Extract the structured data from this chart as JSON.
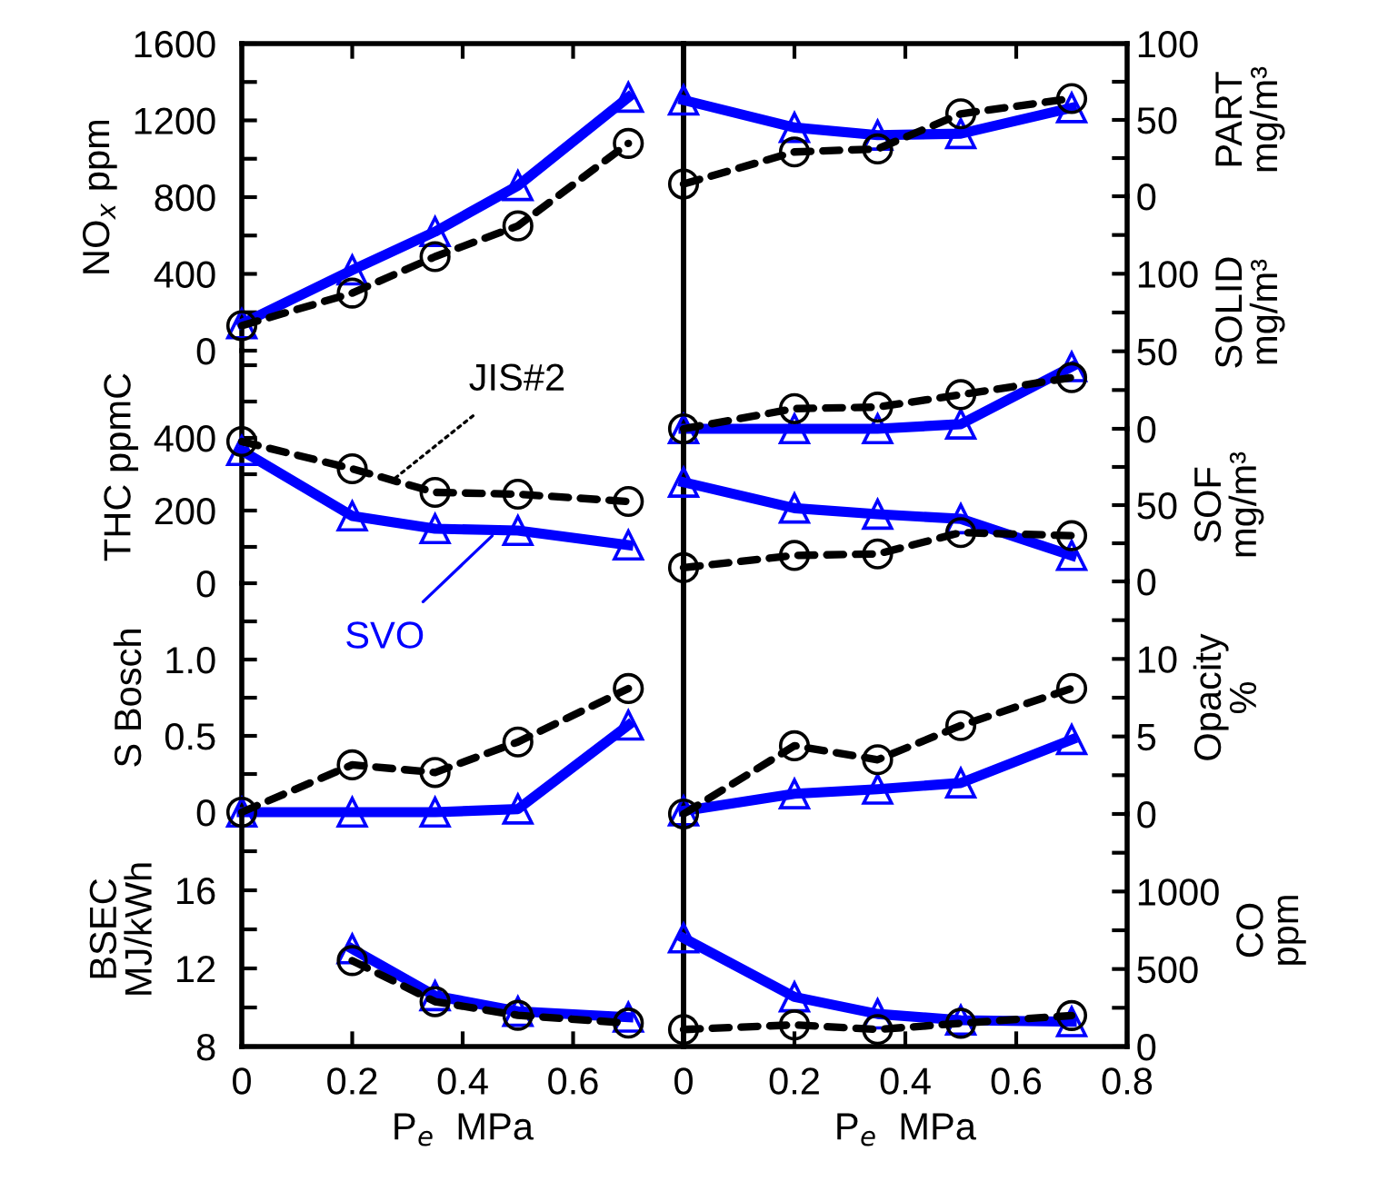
{
  "chart_data": [
    {
      "type": "line",
      "ylabel": "NO$_{x}$ ppm",
      "x": [
        0,
        0.2,
        0.35,
        0.5,
        0.7
      ],
      "xlim": [
        0,
        0.8
      ],
      "xticks": [
        {
          "value": 0,
          "label": null
        },
        {
          "value": 0.2,
          "label": null
        },
        {
          "value": 0.4,
          "label": null
        },
        {
          "value": 0.6,
          "label": null
        }
      ],
      "ylim": [
        0,
        1600
      ],
      "yticks": [
        0,
        {
          "value": 200,
          "label": null
        },
        400,
        {
          "value": 600,
          "label": null
        },
        800,
        {
          "value": 1000,
          "label": null
        },
        1200,
        {
          "value": 1400,
          "label": null
        },
        1600
      ],
      "tick_labels": "y",
      "series": [
        {
          "color": "#000000",
          "marker": "circle",
          "line_style": "dashed",
          "values": [
            130,
            300,
            490,
            650,
            1080
          ]
        },
        {
          "color": "#0000ff",
          "marker": "triangle",
          "line_style": "solid",
          "values": [
            140,
            420,
            620,
            860,
            1320
          ]
        }
      ]
    },
    {
      "type": "line",
      "ylabel": "THC ppmC",
      "x": [
        0,
        0.2,
        0.35,
        0.5,
        0.7
      ],
      "xlim": [
        0,
        0.8
      ],
      "ylim": [
        0,
        640
      ],
      "yticks": [
        0,
        {
          "value": 100,
          "label": null
        },
        200,
        {
          "value": 300,
          "label": null
        },
        400,
        {
          "value": 500,
          "label": null
        },
        {
          "value": 600,
          "label": null
        }
      ],
      "tick_labels": "y",
      "annotations": [
        {
          "text": "JIS#2",
          "x": 0.27,
          "y": 280
        },
        {
          "text": "SVO",
          "x": 0.46,
          "y": 140
        }
      ],
      "series": [
        {
          "color": "#000000",
          "marker": "circle",
          "line_style": "dashed",
          "values": [
            390,
            315,
            250,
            245,
            225
          ]
        },
        {
          "color": "#0000ff",
          "marker": "triangle",
          "line_style": "solid",
          "values": [
            365,
            185,
            150,
            145,
            105
          ]
        }
      ]
    },
    {
      "type": "line",
      "ylabel": "S Bosch",
      "x": [
        0,
        0.2,
        0.35,
        0.5,
        0.7
      ],
      "xlim": [
        0,
        0.8
      ],
      "ylim": [
        0,
        1.5
      ],
      "yticks": [
        {
          "value": 0,
          "label": "0"
        },
        {
          "value": 0.25,
          "label": null
        },
        {
          "value": 0.5,
          "label": "0.5"
        },
        {
          "value": 0.75,
          "label": null
        },
        {
          "value": 1.0,
          "label": "1.0"
        },
        {
          "value": 1.25,
          "label": null
        }
      ],
      "tick_labels": "y",
      "series": [
        {
          "color": "#000000",
          "marker": "circle",
          "line_style": "dashed",
          "values": [
            0,
            0.31,
            0.26,
            0.46,
            0.81
          ]
        },
        {
          "color": "#0000ff",
          "marker": "triangle",
          "line_style": "solid",
          "values": [
            0,
            0,
            0,
            0.02,
            0.57
          ]
        }
      ]
    },
    {
      "type": "line",
      "ylabel": "BSEC\nMJ/kWh",
      "xlabel": "P$_{e}$  MPa",
      "x": [
        0.2,
        0.35,
        0.5,
        0.7
      ],
      "xlim": [
        0,
        0.8
      ],
      "xticks": [
        0,
        0.2,
        0.4,
        0.6,
        {
          "value": 0.8,
          "label": null
        }
      ],
      "ylim": [
        8,
        20
      ],
      "yticks": [
        8,
        {
          "value": 10,
          "label": null
        },
        12,
        {
          "value": 14,
          "label": null
        },
        16,
        {
          "value": 18,
          "label": null
        }
      ],
      "series": [
        {
          "color": "#000000",
          "marker": "circle",
          "line_style": "dashed",
          "values": [
            12.4,
            10.3,
            9.6,
            9.2
          ]
        },
        {
          "color": "#0000ff",
          "marker": "triangle",
          "line_style": "solid",
          "values": [
            13,
            10.6,
            9.8,
            9.5
          ]
        }
      ]
    },
    {
      "type": "line",
      "ylabel": "PART\nmg/m³",
      "x": [
        0,
        0.2,
        0.35,
        0.5,
        0.7
      ],
      "xlim": [
        0,
        0.8
      ],
      "xticks": [
        {
          "value": 0.2,
          "label": null
        },
        {
          "value": 0.4,
          "label": null
        },
        {
          "value": 0.6,
          "label": null
        }
      ],
      "ylim": [
        0,
        100
      ],
      "yticks": [
        0,
        {
          "value": 25,
          "label": null
        },
        50,
        {
          "value": 75,
          "label": null
        },
        100
      ],
      "tick_labels": "y",
      "series": [
        {
          "color": "#000000",
          "marker": "circle",
          "line_style": "dashed",
          "values": [
            8,
            29,
            31,
            54,
            64
          ]
        },
        {
          "color": "#0000ff",
          "marker": "triangle",
          "line_style": "solid",
          "values": [
            63,
            45,
            40,
            41,
            58
          ]
        }
      ]
    },
    {
      "type": "line",
      "ylabel": "SOLID\nmg/m³",
      "x": [
        0,
        0.2,
        0.35,
        0.5,
        0.7
      ],
      "xlim": [
        0,
        0.8
      ],
      "ylim": [
        0,
        150
      ],
      "yticks": [
        0,
        {
          "value": 25,
          "label": null
        },
        50,
        {
          "value": 75,
          "label": null
        },
        100,
        {
          "value": 125,
          "label": null
        }
      ],
      "tick_labels": "y",
      "series": [
        {
          "color": "#000000",
          "marker": "circle",
          "line_style": "dashed",
          "values": [
            0,
            13,
            14,
            22,
            33
          ]
        },
        {
          "color": "#0000ff",
          "marker": "triangle",
          "line_style": "solid",
          "values": [
            0,
            0,
            0,
            3,
            40
          ]
        }
      ]
    },
    {
      "type": "line",
      "ylabel": "SOF\nmg/m³",
      "x": [
        0,
        0.2,
        0.35,
        0.5,
        0.7
      ],
      "xlim": [
        0,
        0.8
      ],
      "ylim": [
        0,
        100
      ],
      "yticks": [
        0,
        {
          "value": 25,
          "label": null
        },
        50,
        {
          "value": 75,
          "label": null
        }
      ],
      "tick_labels": "y",
      "series": [
        {
          "color": "#000000",
          "marker": "circle",
          "line_style": "dashed",
          "values": [
            9,
            17,
            18,
            32,
            30
          ]
        },
        {
          "color": "#0000ff",
          "marker": "triangle",
          "line_style": "solid",
          "values": [
            65,
            48,
            44,
            41,
            17
          ]
        }
      ]
    },
    {
      "type": "line",
      "ylabel": "Opacity\n%",
      "x": [
        0,
        0.2,
        0.35,
        0.5,
        0.7
      ],
      "xlim": [
        0,
        0.8
      ],
      "ylim": [
        0,
        15
      ],
      "yticks": [
        0,
        {
          "value": 2.5,
          "label": null
        },
        5,
        {
          "value": 7.5,
          "label": null
        },
        10,
        {
          "value": 12.5,
          "label": null
        }
      ],
      "tick_labels": "y",
      "series": [
        {
          "color": "#000000",
          "marker": "circle",
          "line_style": "dashed",
          "values": [
            0,
            4.4,
            3.5,
            5.7,
            8.1
          ]
        },
        {
          "color": "#0000ff",
          "marker": "triangle",
          "line_style": "solid",
          "values": [
            0.2,
            1.3,
            1.6,
            2.0,
            4.8
          ]
        }
      ]
    },
    {
      "type": "line",
      "ylabel": "CO\nppm",
      "xlabel": "P$_{e}$  MPa",
      "x": [
        0,
        0.2,
        0.35,
        0.5,
        0.7
      ],
      "xlim": [
        0,
        0.8
      ],
      "xticks": [
        0,
        0.2,
        0.4,
        0.6,
        0.8
      ],
      "ylim": [
        0,
        1500
      ],
      "yticks": [
        0,
        {
          "value": 250,
          "label": null
        },
        500,
        {
          "value": 750,
          "label": null
        },
        1000,
        {
          "value": 1250,
          "label": null
        }
      ],
      "series": [
        {
          "color": "#000000",
          "marker": "circle",
          "line_style": "dashed",
          "values": [
            110,
            140,
            110,
            150,
            200
          ]
        },
        {
          "color": "#0000ff",
          "marker": "triangle",
          "line_style": "solid",
          "values": [
            700,
            320,
            210,
            170,
            160
          ]
        }
      ]
    }
  ]
}
